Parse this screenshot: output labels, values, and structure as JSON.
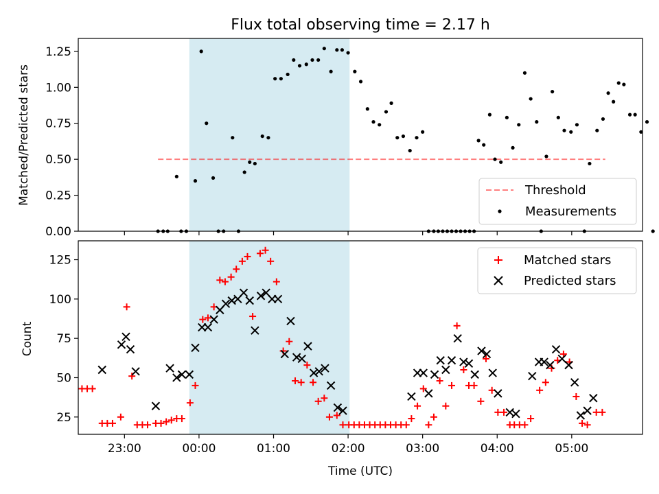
{
  "chart_data": [
    {
      "type": "scatter",
      "title": "Flux total observing time = 2.17 h",
      "ylabel": "Matched/Predicted stars",
      "xlabel": "",
      "x_unit": "hours after 00:00 UTC",
      "xlim": [
        -1.62,
        5.95
      ],
      "ylim": [
        0.0,
        1.34
      ],
      "yticks": [
        0.0,
        0.25,
        0.5,
        0.75,
        1.0,
        1.25
      ],
      "ytick_labels": [
        "0.00",
        "0.25",
        "0.50",
        "0.75",
        "1.00",
        "1.25"
      ],
      "highlight_span": [
        -0.13,
        2.02
      ],
      "highlight_color": "#add8e6",
      "threshold": {
        "name": "Threshold",
        "value": 0.5,
        "x_range": [
          -0.55,
          5.45
        ],
        "color": "#ff0000"
      },
      "legend": {
        "position": "lower right",
        "entries": [
          "Threshold",
          "Measurements"
        ]
      },
      "series": [
        {
          "name": "Measurements",
          "color": "#000000",
          "marker": "dot",
          "points": [
            [
              -0.55,
              0.0
            ],
            [
              -0.48,
              0.0
            ],
            [
              -0.42,
              0.0
            ],
            [
              -0.3,
              0.38
            ],
            [
              -0.24,
              0.0
            ],
            [
              -0.17,
              0.0
            ],
            [
              -0.05,
              0.35
            ],
            [
              0.03,
              1.25
            ],
            [
              0.1,
              0.75
            ],
            [
              0.19,
              0.37
            ],
            [
              0.26,
              0.0
            ],
            [
              0.33,
              0.0
            ],
            [
              0.45,
              0.65
            ],
            [
              0.53,
              0.0
            ],
            [
              0.61,
              0.41
            ],
            [
              0.68,
              0.48
            ],
            [
              0.75,
              0.47
            ],
            [
              0.85,
              0.66
            ],
            [
              0.93,
              0.65
            ],
            [
              1.02,
              1.06
            ],
            [
              1.1,
              1.06
            ],
            [
              1.19,
              1.09
            ],
            [
              1.27,
              1.19
            ],
            [
              1.35,
              1.15
            ],
            [
              1.44,
              1.16
            ],
            [
              1.52,
              1.19
            ],
            [
              1.6,
              1.19
            ],
            [
              1.68,
              1.27
            ],
            [
              1.77,
              1.11
            ],
            [
              1.85,
              1.26
            ],
            [
              1.92,
              1.26
            ],
            [
              2.0,
              1.24
            ],
            [
              2.09,
              1.11
            ],
            [
              2.17,
              1.04
            ],
            [
              2.26,
              0.85
            ],
            [
              2.34,
              0.76
            ],
            [
              2.42,
              0.74
            ],
            [
              2.51,
              0.83
            ],
            [
              2.58,
              0.89
            ],
            [
              2.66,
              0.65
            ],
            [
              2.74,
              0.66
            ],
            [
              2.83,
              0.56
            ],
            [
              2.92,
              0.65
            ],
            [
              3.0,
              0.69
            ],
            [
              3.08,
              0.0
            ],
            [
              3.15,
              0.0
            ],
            [
              3.21,
              0.0
            ],
            [
              3.27,
              0.0
            ],
            [
              3.33,
              0.0
            ],
            [
              3.39,
              0.0
            ],
            [
              3.45,
              0.0
            ],
            [
              3.51,
              0.0
            ],
            [
              3.57,
              0.0
            ],
            [
              3.63,
              0.0
            ],
            [
              3.69,
              0.0
            ],
            [
              3.75,
              0.63
            ],
            [
              3.82,
              0.6
            ],
            [
              3.9,
              0.81
            ],
            [
              3.97,
              0.5
            ],
            [
              4.05,
              0.48
            ],
            [
              4.13,
              0.79
            ],
            [
              4.21,
              0.58
            ],
            [
              4.29,
              0.74
            ],
            [
              4.37,
              1.1
            ],
            [
              4.45,
              0.92
            ],
            [
              4.53,
              0.76
            ],
            [
              4.59,
              0.0
            ],
            [
              4.66,
              0.52
            ],
            [
              4.74,
              0.97
            ],
            [
              4.82,
              0.79
            ],
            [
              4.9,
              0.7
            ],
            [
              4.99,
              0.69
            ],
            [
              5.07,
              0.74
            ],
            [
              5.17,
              0.0
            ],
            [
              5.24,
              0.47
            ],
            [
              5.34,
              0.7
            ],
            [
              5.42,
              0.78
            ],
            [
              5.49,
              0.96
            ],
            [
              5.56,
              0.9
            ],
            [
              5.63,
              1.03
            ],
            [
              5.7,
              1.02
            ],
            [
              5.78,
              0.81
            ],
            [
              5.85,
              0.81
            ],
            [
              5.93,
              0.69
            ],
            [
              6.01,
              0.76
            ],
            [
              6.09,
              0.0
            ]
          ]
        }
      ]
    },
    {
      "type": "scatter",
      "title": "",
      "ylabel": "Count",
      "xlabel": "Time (UTC)",
      "x_unit": "hours after 00:00 UTC",
      "xlim": [
        -1.62,
        5.95
      ],
      "ylim": [
        14,
        137
      ],
      "yticks": [
        25,
        50,
        75,
        100,
        125
      ],
      "ytick_labels": [
        "25",
        "50",
        "75",
        "100",
        "125"
      ],
      "xticks": [
        -1,
        0,
        1,
        2,
        3,
        4,
        5
      ],
      "xtick_labels": [
        "23:00",
        "00:00",
        "01:00",
        "02:00",
        "03:00",
        "04:00",
        "05:00"
      ],
      "highlight_span": [
        -0.13,
        2.02
      ],
      "highlight_color": "#add8e6",
      "legend": {
        "position": "upper right",
        "entries": [
          "Matched stars",
          "Predicted stars"
        ]
      },
      "series": [
        {
          "name": "Matched stars",
          "color": "#ff0000",
          "marker": "plus",
          "points": [
            [
              -1.57,
              43
            ],
            [
              -1.5,
              43
            ],
            [
              -1.43,
              43
            ],
            [
              -1.3,
              21
            ],
            [
              -1.23,
              21
            ],
            [
              -1.16,
              21
            ],
            [
              -1.05,
              25
            ],
            [
              -0.97,
              95
            ],
            [
              -0.9,
              51
            ],
            [
              -0.83,
              20
            ],
            [
              -0.76,
              20
            ],
            [
              -0.69,
              20
            ],
            [
              -0.58,
              21
            ],
            [
              -0.51,
              21
            ],
            [
              -0.44,
              22
            ],
            [
              -0.37,
              23
            ],
            [
              -0.3,
              24
            ],
            [
              -0.23,
              24
            ],
            [
              -0.12,
              34
            ],
            [
              -0.05,
              45
            ],
            [
              0.05,
              87
            ],
            [
              0.12,
              88
            ],
            [
              0.2,
              95
            ],
            [
              0.28,
              112
            ],
            [
              0.35,
              111
            ],
            [
              0.43,
              114
            ],
            [
              0.5,
              119
            ],
            [
              0.58,
              124
            ],
            [
              0.65,
              127
            ],
            [
              0.72,
              89
            ],
            [
              0.82,
              129
            ],
            [
              0.89,
              131
            ],
            [
              0.96,
              124
            ],
            [
              1.04,
              111
            ],
            [
              1.13,
              67
            ],
            [
              1.21,
              73
            ],
            [
              1.29,
              48
            ],
            [
              1.37,
              47
            ],
            [
              1.45,
              58
            ],
            [
              1.53,
              47
            ],
            [
              1.6,
              35
            ],
            [
              1.68,
              37
            ],
            [
              1.75,
              25
            ],
            [
              1.85,
              26
            ],
            [
              1.93,
              20
            ],
            [
              2.01,
              20
            ],
            [
              2.08,
              20
            ],
            [
              2.15,
              20
            ],
            [
              2.22,
              20
            ],
            [
              2.29,
              20
            ],
            [
              2.36,
              20
            ],
            [
              2.43,
              20
            ],
            [
              2.5,
              20
            ],
            [
              2.57,
              20
            ],
            [
              2.64,
              20
            ],
            [
              2.71,
              20
            ],
            [
              2.78,
              20
            ],
            [
              2.85,
              24
            ],
            [
              2.93,
              32
            ],
            [
              3.01,
              43
            ],
            [
              3.08,
              20
            ],
            [
              3.15,
              25
            ],
            [
              3.23,
              48
            ],
            [
              3.31,
              32
            ],
            [
              3.39,
              45
            ],
            [
              3.46,
              83
            ],
            [
              3.55,
              55
            ],
            [
              3.62,
              45
            ],
            [
              3.69,
              45
            ],
            [
              3.78,
              35
            ],
            [
              3.85,
              62
            ],
            [
              3.93,
              42
            ],
            [
              4.01,
              28
            ],
            [
              4.09,
              28
            ],
            [
              4.17,
              20
            ],
            [
              4.23,
              20
            ],
            [
              4.3,
              20
            ],
            [
              4.37,
              20
            ],
            [
              4.45,
              24
            ],
            [
              4.57,
              42
            ],
            [
              4.65,
              47
            ],
            [
              4.73,
              56
            ],
            [
              4.81,
              61
            ],
            [
              4.89,
              65
            ],
            [
              4.97,
              60
            ],
            [
              5.06,
              38
            ],
            [
              5.14,
              21
            ],
            [
              5.21,
              20
            ],
            [
              5.33,
              28
            ],
            [
              5.41,
              28
            ]
          ]
        },
        {
          "name": "Predicted stars",
          "color": "#000000",
          "marker": "x",
          "points": [
            [
              -1.3,
              55
            ],
            [
              -1.04,
              71
            ],
            [
              -0.98,
              76
            ],
            [
              -0.92,
              68
            ],
            [
              -0.85,
              54
            ],
            [
              -0.58,
              32
            ],
            [
              -0.39,
              56
            ],
            [
              -0.3,
              50
            ],
            [
              -0.23,
              52
            ],
            [
              -0.13,
              52
            ],
            [
              -0.05,
              69
            ],
            [
              0.04,
              82
            ],
            [
              0.12,
              82
            ],
            [
              0.2,
              87
            ],
            [
              0.28,
              93
            ],
            [
              0.36,
              97
            ],
            [
              0.44,
              99
            ],
            [
              0.52,
              100
            ],
            [
              0.6,
              104
            ],
            [
              0.68,
              99
            ],
            [
              0.75,
              80
            ],
            [
              0.83,
              102
            ],
            [
              0.9,
              104
            ],
            [
              0.98,
              100
            ],
            [
              1.06,
              100
            ],
            [
              1.15,
              65
            ],
            [
              1.23,
              86
            ],
            [
              1.31,
              63
            ],
            [
              1.38,
              62
            ],
            [
              1.46,
              70
            ],
            [
              1.54,
              53
            ],
            [
              1.61,
              54
            ],
            [
              1.69,
              56
            ],
            [
              1.77,
              45
            ],
            [
              1.86,
              31
            ],
            [
              1.93,
              29
            ],
            [
              2.85,
              38
            ],
            [
              2.93,
              53
            ],
            [
              3.01,
              53
            ],
            [
              3.08,
              40
            ],
            [
              3.16,
              52
            ],
            [
              3.24,
              61
            ],
            [
              3.31,
              55
            ],
            [
              3.39,
              61
            ],
            [
              3.47,
              75
            ],
            [
              3.55,
              60
            ],
            [
              3.62,
              59
            ],
            [
              3.7,
              52
            ],
            [
              3.79,
              67
            ],
            [
              3.86,
              65
            ],
            [
              3.94,
              53
            ],
            [
              4.01,
              40
            ],
            [
              4.17,
              28
            ],
            [
              4.25,
              27
            ],
            [
              4.47,
              51
            ],
            [
              4.56,
              60
            ],
            [
              4.63,
              60
            ],
            [
              4.71,
              58
            ],
            [
              4.79,
              68
            ],
            [
              4.87,
              62
            ],
            [
              4.96,
              58
            ],
            [
              5.04,
              47
            ],
            [
              5.12,
              26
            ],
            [
              5.21,
              29
            ],
            [
              5.29,
              37
            ]
          ]
        }
      ]
    }
  ]
}
